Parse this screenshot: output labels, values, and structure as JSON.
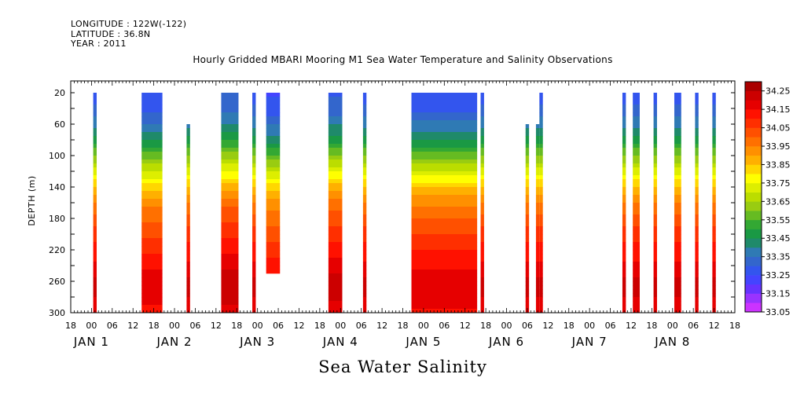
{
  "header": {
    "longitude": "LONGITUDE : 122W(-122)",
    "latitude": "LATITUDE : 36.8N",
    "year": "YEAR : 2011"
  },
  "chart_data": {
    "type": "heatmap",
    "title": "Hourly Gridded MBARI Mooring M1 Sea Water Temperature and Salinity Observations",
    "xlabel": "Sea Water Salinity",
    "ylabel": "DEPTH (m)",
    "x_unit": "hours since JAN 1 00:00",
    "xlim": [
      -6,
      186
    ],
    "ylim": [
      300,
      5
    ],
    "y_ticks": [
      20,
      60,
      100,
      140,
      180,
      220,
      260,
      300
    ],
    "x_tick_labels": [
      {
        "t": -6,
        "label": "18"
      },
      {
        "t": 0,
        "label": "00"
      },
      {
        "t": 6,
        "label": "06"
      },
      {
        "t": 12,
        "label": "12"
      },
      {
        "t": 18,
        "label": "18"
      },
      {
        "t": 24,
        "label": "00"
      },
      {
        "t": 30,
        "label": "06"
      },
      {
        "t": 36,
        "label": "12"
      },
      {
        "t": 42,
        "label": "18"
      },
      {
        "t": 48,
        "label": "00"
      },
      {
        "t": 54,
        "label": "06"
      },
      {
        "t": 60,
        "label": "12"
      },
      {
        "t": 66,
        "label": "18"
      },
      {
        "t": 72,
        "label": "00"
      },
      {
        "t": 78,
        "label": "06"
      },
      {
        "t": 84,
        "label": "12"
      },
      {
        "t": 90,
        "label": "18"
      },
      {
        "t": 96,
        "label": "00"
      },
      {
        "t": 102,
        "label": "06"
      },
      {
        "t": 108,
        "label": "12"
      },
      {
        "t": 114,
        "label": "18"
      },
      {
        "t": 120,
        "label": "00"
      },
      {
        "t": 126,
        "label": "06"
      },
      {
        "t": 132,
        "label": "12"
      },
      {
        "t": 138,
        "label": "18"
      },
      {
        "t": 144,
        "label": "00"
      },
      {
        "t": 150,
        "label": "06"
      },
      {
        "t": 156,
        "label": "12"
      },
      {
        "t": 162,
        "label": "18"
      },
      {
        "t": 168,
        "label": "00"
      },
      {
        "t": 174,
        "label": "06"
      },
      {
        "t": 180,
        "label": "12"
      },
      {
        "t": 186,
        "label": "18"
      }
    ],
    "day_labels": [
      {
        "t": 0,
        "label": "JAN 1"
      },
      {
        "t": 24,
        "label": "JAN 2"
      },
      {
        "t": 48,
        "label": "JAN 3"
      },
      {
        "t": 72,
        "label": "JAN 4"
      },
      {
        "t": 96,
        "label": "JAN 5"
      },
      {
        "t": 120,
        "label": "JAN 6"
      },
      {
        "t": 144,
        "label": "JAN 7"
      },
      {
        "t": 168,
        "label": "JAN 8"
      }
    ],
    "colorbar": {
      "levels": [
        33.05,
        33.1,
        33.15,
        33.2,
        33.25,
        33.3,
        33.35,
        33.4,
        33.45,
        33.5,
        33.55,
        33.6,
        33.65,
        33.7,
        33.75,
        33.8,
        33.85,
        33.9,
        33.95,
        34.0,
        34.05,
        34.1,
        34.15,
        34.2,
        34.25,
        34.3
      ],
      "labels": [
        "33.05",
        "33.15",
        "33.25",
        "33.35",
        "33.45",
        "33.55",
        "33.65",
        "33.75",
        "33.85",
        "33.95",
        "34.05",
        "34.15",
        "34.25"
      ],
      "colors": [
        "#cc33ff",
        "#9933ff",
        "#6633ff",
        "#4444ff",
        "#3355ee",
        "#3366cc",
        "#2f7ab4",
        "#1f8a6a",
        "#1a9944",
        "#33a833",
        "#66bb22",
        "#99cc11",
        "#bbdd00",
        "#ddee00",
        "#ffff00",
        "#ffd700",
        "#ffb000",
        "#ff9000",
        "#ff7000",
        "#ff5000",
        "#ff2f00",
        "#ff1100",
        "#e60000",
        "#cc0000",
        "#aa0000"
      ]
    },
    "depths": [
      20,
      40,
      60,
      80,
      100,
      120,
      140,
      160,
      180,
      200,
      220,
      240,
      260,
      280,
      300
    ],
    "profile": [
      33.28,
      33.31,
      33.38,
      33.47,
      33.6,
      33.73,
      33.86,
      33.96,
      34.02,
      34.07,
      34.12,
      34.16,
      34.22,
      34.2,
      34.16
    ],
    "segments": [
      {
        "t0": 0.5,
        "t1": 1.5,
        "top": 20
      },
      {
        "t0": 14.5,
        "t1": 20.5,
        "top": 20,
        "offset": -0.03
      },
      {
        "t0": 27.5,
        "t1": 28.5,
        "top": 60
      },
      {
        "t0": 37.5,
        "t1": 42.5,
        "top": 20,
        "offset": 0.02
      },
      {
        "t0": 46.5,
        "t1": 47.5,
        "top": 20
      },
      {
        "t0": 50.5,
        "t1": 54.5,
        "top": 20,
        "bottom": 250,
        "offset": -0.04
      },
      {
        "t0": 68.5,
        "t1": 72.5,
        "top": 20,
        "offset": 0.01
      },
      {
        "t0": 78.5,
        "t1": 79.5,
        "top": 20
      },
      {
        "t0": 92.5,
        "t1": 111.5,
        "top": 20,
        "offset": -0.02
      },
      {
        "t0": 112.5,
        "t1": 113.5,
        "top": 20
      },
      {
        "t0": 125.5,
        "t1": 126.5,
        "top": 60
      },
      {
        "t0": 128.5,
        "t1": 129.5,
        "top": 60
      },
      {
        "t0": 129.5,
        "t1": 130.5,
        "top": 20
      },
      {
        "t0": 153.5,
        "t1": 154.5,
        "top": 20
      },
      {
        "t0": 156.5,
        "t1": 158.5,
        "top": 20
      },
      {
        "t0": 162.5,
        "t1": 163.5,
        "top": 20
      },
      {
        "t0": 168.5,
        "t1": 170.5,
        "top": 20
      },
      {
        "t0": 174.5,
        "t1": 175.5,
        "top": 20
      },
      {
        "t0": 179.5,
        "t1": 180.5,
        "top": 20
      }
    ]
  }
}
